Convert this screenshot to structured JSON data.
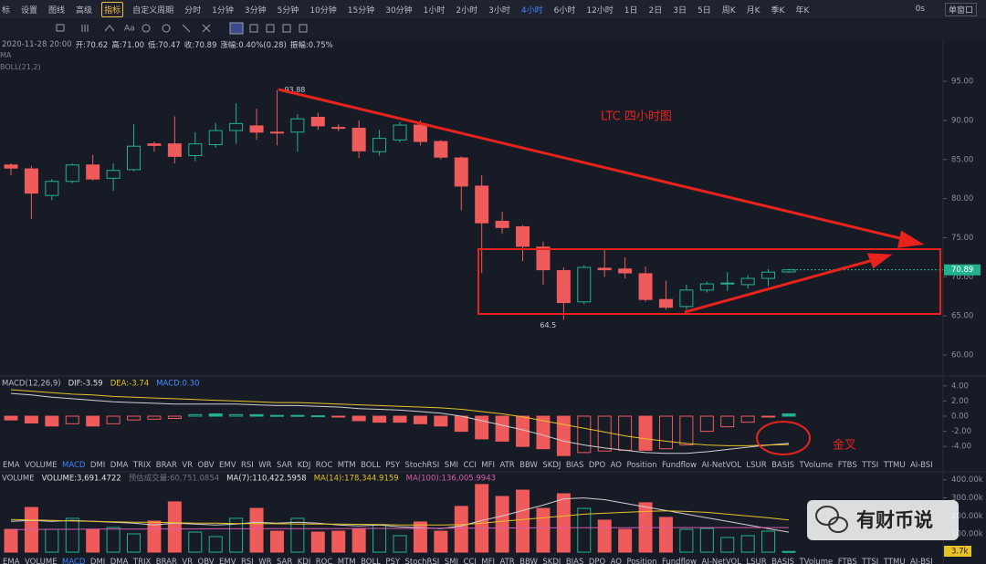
{
  "toolbar": {
    "items": [
      "标",
      "设置",
      "图线",
      "高级",
      "指标",
      "自定义周期",
      "分时",
      "1分钟",
      "3分钟",
      "5分钟",
      "10分钟",
      "15分钟",
      "30分钟",
      "1小时",
      "2小时",
      "3小时",
      "4小时",
      "6小时",
      "12小时",
      "1日",
      "2日",
      "3日",
      "5日",
      "周K",
      "月K",
      "季K",
      "年K"
    ],
    "active": "4小时",
    "highlight": "指标",
    "right": [
      "0s",
      "单窗口"
    ]
  },
  "info": [
    "2020-11-28 20:00",
    "开:70.62",
    "高:71.00",
    "低:70.47",
    "收:70.89",
    "涨幅:0.40%(0.28)",
    "振幅:0.75%"
  ],
  "overlays": [
    "MA",
    "BOLL(21,2)"
  ],
  "indicator_tabs": {
    "items": [
      "EMA",
      "VOLUME",
      "MACD",
      "DMI",
      "DMA",
      "TRIX",
      "BRAR",
      "VR",
      "OBV",
      "EMV",
      "RSI",
      "WR",
      "SAR",
      "KDJ",
      "ROC",
      "MTM",
      "BOLL",
      "PSY",
      "StochRSI",
      "SMI",
      "CCI",
      "MFI",
      "ATR",
      "BBW",
      "SKDJ",
      "BIAS",
      "DPO",
      "AO",
      "Position",
      "Fundflow",
      "AI-NetVOL",
      "LSUR",
      "BASIS",
      "TVolume",
      "FTBS",
      "TTSI",
      "TTMU",
      "AI-BSI"
    ],
    "active": "MACD"
  },
  "annotations": {
    "title": "LTC 四小时图",
    "golden_cross": "金叉"
  },
  "watermark": "有财币说",
  "chart_data": [
    {
      "type": "candlestick",
      "up_color": "#22b38e",
      "down_color": "#ef5b5b",
      "open": [
        84.3,
        83.8,
        80.4,
        82.2,
        84.3,
        82.6,
        83.7,
        87.0,
        87.0,
        85.5,
        86.9,
        88.7,
        89.3,
        88.5,
        88.5,
        90.4,
        89.1,
        89.0,
        86.0,
        87.5,
        89.4,
        87.3,
        85.2,
        81.6,
        77.1,
        76.4,
        73.8,
        70.8,
        66.8,
        71.1,
        71.0,
        70.4,
        67.1,
        66.2,
        68.3,
        69.1,
        69.0,
        69.8,
        70.62
      ],
      "high": [
        84.5,
        84.2,
        82.5,
        84.5,
        85.6,
        84.5,
        89.5,
        87.3,
        90.5,
        88.5,
        89.7,
        92.2,
        91.5,
        93.88,
        90.8,
        91.0,
        89.5,
        90.0,
        88.8,
        89.8,
        90.0,
        87.5,
        85.4,
        83.0,
        78.3,
        76.6,
        74.5,
        71.2,
        71.5,
        73.5,
        72.5,
        71.3,
        69.5,
        69.0,
        69.4,
        70.6,
        70.2,
        71.0,
        71.0
      ],
      "low": [
        83.0,
        77.4,
        79.8,
        82.0,
        82.3,
        81.0,
        83.5,
        86.0,
        84.5,
        84.8,
        86.5,
        87.0,
        87.5,
        86.8,
        86.0,
        88.8,
        88.6,
        85.2,
        85.5,
        87.2,
        86.8,
        85.0,
        78.5,
        70.5,
        75.5,
        72.0,
        69.0,
        64.5,
        66.5,
        70.0,
        69.8,
        66.8,
        65.8,
        65.8,
        68.0,
        68.2,
        68.5,
        68.8,
        70.47
      ],
      "close": [
        83.9,
        80.7,
        82.2,
        84.3,
        82.5,
        83.6,
        86.7,
        86.8,
        85.4,
        87.0,
        88.7,
        89.6,
        88.5,
        88.4,
        90.2,
        89.3,
        89.0,
        86.1,
        87.7,
        89.4,
        87.3,
        85.3,
        81.6,
        76.9,
        76.3,
        73.9,
        70.9,
        66.7,
        71.2,
        70.9,
        70.5,
        67.1,
        66.1,
        68.3,
        69.1,
        69.2,
        69.8,
        70.6,
        70.89
      ],
      "ylim": [
        57.55,
        98.16
      ],
      "yticks": [
        {
          "value": 95,
          "label": "95.00"
        },
        {
          "value": 90,
          "label": "90.00"
        },
        {
          "value": 85,
          "label": "85.00"
        },
        {
          "value": 80,
          "label": "80.00"
        },
        {
          "value": 75,
          "label": "75.00"
        },
        {
          "value": 70,
          "label": "70.00"
        },
        {
          "value": 65,
          "label": "65.00"
        },
        {
          "value": 60,
          "label": "60.00"
        }
      ],
      "grid": false
    },
    {
      "type": "macd",
      "header": [
        {
          "text": "MACD(12,26,9)",
          "color": "#b9bcc7"
        },
        {
          "text": "DIF:-3.59",
          "color": "#e0e0e0"
        },
        {
          "text": "DEA:-3.74",
          "color": "#e6c229"
        },
        {
          "text": "MACD:0.30",
          "color": "#4b8cff"
        }
      ],
      "histogram": [
        -0.5,
        -0.9,
        -1.3,
        -1.0,
        -1.3,
        -1.0,
        -0.5,
        -0.4,
        -0.3,
        0.2,
        0.3,
        0.2,
        0.2,
        0.1,
        0.1,
        0.05,
        -0.1,
        -0.6,
        -0.8,
        -0.8,
        -1.0,
        -1.3,
        -2.0,
        -3.0,
        -3.3,
        -4.0,
        -4.3,
        -5.2,
        -4.8,
        -4.6,
        -4.5,
        -4.5,
        -4.3,
        -3.8,
        -2.0,
        -1.4,
        -0.8,
        -0.1,
        0.3
      ],
      "series": [
        {
          "color": "#d0d0d0",
          "values": [
            3.0,
            2.8,
            2.5,
            2.3,
            2.1,
            1.9,
            1.8,
            1.7,
            1.6,
            1.6,
            1.6,
            1.6,
            1.5,
            1.4,
            1.4,
            1.3,
            1.2,
            1.0,
            0.9,
            0.8,
            0.6,
            0.4,
            0.0,
            -0.6,
            -1.2,
            -1.8,
            -2.5,
            -3.3,
            -3.8,
            -4.2,
            -4.5,
            -4.8,
            -4.9,
            -4.9,
            -4.7,
            -4.4,
            -4.1,
            -3.8,
            -3.59
          ]
        },
        {
          "color": "#e6c229",
          "values": [
            3.5,
            3.3,
            3.1,
            2.9,
            2.8,
            2.6,
            2.5,
            2.4,
            2.3,
            2.2,
            2.1,
            2.0,
            1.9,
            1.8,
            1.8,
            1.7,
            1.6,
            1.5,
            1.4,
            1.3,
            1.2,
            1.1,
            0.9,
            0.6,
            0.3,
            -0.1,
            -0.6,
            -1.1,
            -1.6,
            -2.1,
            -2.6,
            -3.0,
            -3.3,
            -3.6,
            -3.8,
            -3.9,
            -3.9,
            -3.8,
            -3.74
          ]
        }
      ],
      "ylim": [
        -5.54,
        4.94
      ],
      "yticks": [
        {
          "value": 4,
          "label": "4.00"
        },
        {
          "value": 2,
          "label": "2.00"
        },
        {
          "value": 0,
          "label": "0.00"
        },
        {
          "value": -2,
          "label": "-2.00"
        },
        {
          "value": -4,
          "label": "-4.00"
        }
      ]
    },
    {
      "type": "volume",
      "header": [
        {
          "text": "VOLUME",
          "color": "#b9bcc7"
        },
        {
          "text": "VOLUME:3,691.4722",
          "color": "#e0e0e0"
        },
        {
          "text": "预估成交量:60,751.0854",
          "color": "#6f7380"
        },
        {
          "text": "MA(7):110,422.5958",
          "color": "#e0e0e0"
        },
        {
          "text": "MA(14):178,344.9159",
          "color": "#e6c229"
        },
        {
          "text": "MA(100):136,005.9943",
          "color": "#d65db1"
        }
      ],
      "values": [
        126000,
        247000,
        126000,
        187000,
        126000,
        136000,
        101000,
        172000,
        278000,
        111000,
        86000,
        187000,
        242000,
        116000,
        187000,
        111000,
        116000,
        126000,
        152000,
        91000,
        167000,
        116000,
        253000,
        374000,
        308000,
        343000,
        242000,
        323000,
        242000,
        177000,
        126000,
        273000,
        192000,
        126000,
        131000,
        81000,
        91000,
        116000,
        3691.4722
      ],
      "series": [
        {
          "color": "#d0d0d0",
          "values": [
            170000,
            175000,
            170000,
            175000,
            170000,
            165000,
            160000,
            150000,
            160000,
            155000,
            150000,
            155000,
            165000,
            160000,
            165000,
            160000,
            150000,
            145000,
            150000,
            140000,
            135000,
            130000,
            145000,
            175000,
            200000,
            230000,
            260000,
            295000,
            300000,
            290000,
            270000,
            250000,
            230000,
            210000,
            190000,
            170000,
            150000,
            130000,
            110422.5958
          ]
        },
        {
          "color": "#e6c229",
          "values": [
            180000,
            178000,
            175000,
            172000,
            170000,
            168000,
            165000,
            165000,
            163000,
            160000,
            160000,
            158000,
            158000,
            157000,
            156000,
            155000,
            155000,
            154000,
            153000,
            150000,
            150000,
            150000,
            152000,
            160000,
            170000,
            180000,
            190000,
            200000,
            210000,
            215000,
            220000,
            225000,
            228000,
            225000,
            220000,
            210000,
            200000,
            190000,
            178344.9159
          ]
        },
        {
          "color": "#d65db1",
          "values": [
            125000,
            125000,
            126000,
            126000,
            127000,
            127000,
            127000,
            128000,
            128000,
            128000,
            129000,
            129000,
            129000,
            130000,
            130000,
            130000,
            130000,
            131000,
            131000,
            131000,
            131000,
            132000,
            132000,
            133000,
            133000,
            134000,
            134000,
            135000,
            135000,
            135000,
            135000,
            136000,
            136000,
            136000,
            136000,
            136000,
            136000,
            136000,
            136005.9943
          ]
        }
      ],
      "ylim": [
        0,
        429000
      ],
      "yticks": [
        {
          "value": 400000,
          "label": "400.00k"
        },
        {
          "value": 300000,
          "label": "300.00k"
        },
        {
          "value": 200000,
          "label": "200.00k"
        },
        {
          "value": 100000,
          "label": "100.00k"
        }
      ],
      "last_value_label": "3.7k"
    }
  ]
}
